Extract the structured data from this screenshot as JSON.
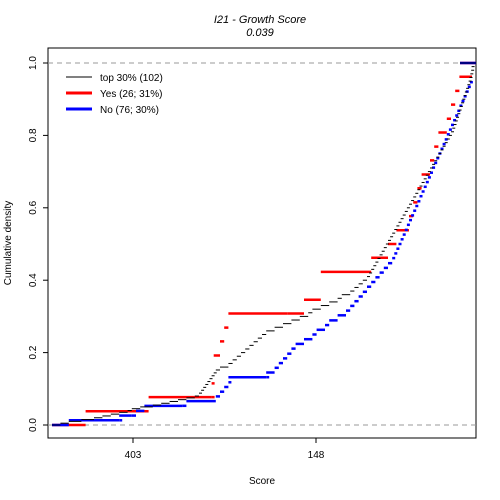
{
  "chart_data": {
    "type": "line",
    "chart_kind": "step-ecdf",
    "title": "I21 - Growth Score",
    "subtitle": "0.039",
    "xlabel": "Score",
    "ylabel": "Cumulative density",
    "xticks": [
      "403",
      "148"
    ],
    "yticks": [
      "0.0",
      "0.2",
      "0.4",
      "0.6",
      "0.8",
      "1.0"
    ],
    "ylim": [
      0,
      1
    ],
    "reference_lines": [
      0,
      1
    ],
    "grid": false,
    "legend_position": "top-left",
    "series": [
      {
        "name": "top 30% (102)",
        "color": "#000000",
        "points": [
          [
            0.0,
            0.0
          ],
          [
            0.02,
            0.005
          ],
          [
            0.04,
            0.01
          ],
          [
            0.07,
            0.015
          ],
          [
            0.1,
            0.02
          ],
          [
            0.12,
            0.025
          ],
          [
            0.14,
            0.03
          ],
          [
            0.16,
            0.035
          ],
          [
            0.18,
            0.04
          ],
          [
            0.19,
            0.045
          ],
          [
            0.21,
            0.05
          ],
          [
            0.24,
            0.055
          ],
          [
            0.26,
            0.06
          ],
          [
            0.28,
            0.065
          ],
          [
            0.3,
            0.07
          ],
          [
            0.32,
            0.075
          ],
          [
            0.34,
            0.08
          ],
          [
            0.35,
            0.088
          ],
          [
            0.355,
            0.096
          ],
          [
            0.36,
            0.104
          ],
          [
            0.365,
            0.112
          ],
          [
            0.37,
            0.12
          ],
          [
            0.375,
            0.128
          ],
          [
            0.38,
            0.136
          ],
          [
            0.385,
            0.144
          ],
          [
            0.39,
            0.152
          ],
          [
            0.4,
            0.16
          ],
          [
            0.42,
            0.17
          ],
          [
            0.43,
            0.18
          ],
          [
            0.44,
            0.19
          ],
          [
            0.45,
            0.2
          ],
          [
            0.46,
            0.21
          ],
          [
            0.47,
            0.22
          ],
          [
            0.48,
            0.23
          ],
          [
            0.49,
            0.24
          ],
          [
            0.5,
            0.25
          ],
          [
            0.51,
            0.26
          ],
          [
            0.53,
            0.27
          ],
          [
            0.55,
            0.28
          ],
          [
            0.57,
            0.29
          ],
          [
            0.59,
            0.3
          ],
          [
            0.61,
            0.31
          ],
          [
            0.62,
            0.32
          ],
          [
            0.64,
            0.33
          ],
          [
            0.66,
            0.34
          ],
          [
            0.68,
            0.35
          ],
          [
            0.69,
            0.36
          ],
          [
            0.71,
            0.37
          ],
          [
            0.72,
            0.38
          ],
          [
            0.73,
            0.39
          ],
          [
            0.74,
            0.4
          ],
          [
            0.75,
            0.41
          ],
          [
            0.755,
            0.42
          ],
          [
            0.76,
            0.43
          ],
          [
            0.765,
            0.44
          ],
          [
            0.77,
            0.45
          ],
          [
            0.775,
            0.46
          ],
          [
            0.78,
            0.47
          ],
          [
            0.785,
            0.48
          ],
          [
            0.79,
            0.49
          ],
          [
            0.795,
            0.5
          ],
          [
            0.8,
            0.51
          ],
          [
            0.805,
            0.52
          ],
          [
            0.81,
            0.53
          ],
          [
            0.815,
            0.54
          ],
          [
            0.82,
            0.55
          ],
          [
            0.825,
            0.56
          ],
          [
            0.83,
            0.57
          ],
          [
            0.835,
            0.58
          ],
          [
            0.84,
            0.59
          ],
          [
            0.845,
            0.6
          ],
          [
            0.85,
            0.61
          ],
          [
            0.855,
            0.62
          ],
          [
            0.86,
            0.63
          ],
          [
            0.865,
            0.64
          ],
          [
            0.87,
            0.65
          ],
          [
            0.875,
            0.66
          ],
          [
            0.88,
            0.67
          ],
          [
            0.885,
            0.68
          ],
          [
            0.89,
            0.69
          ],
          [
            0.895,
            0.7
          ],
          [
            0.9,
            0.71
          ],
          [
            0.905,
            0.72
          ],
          [
            0.91,
            0.73
          ],
          [
            0.915,
            0.74
          ],
          [
            0.92,
            0.75
          ],
          [
            0.925,
            0.76
          ],
          [
            0.93,
            0.77
          ],
          [
            0.935,
            0.78
          ],
          [
            0.94,
            0.79
          ],
          [
            0.945,
            0.8
          ],
          [
            0.95,
            0.81
          ],
          [
            0.953,
            0.82
          ],
          [
            0.956,
            0.83
          ],
          [
            0.959,
            0.84
          ],
          [
            0.962,
            0.85
          ],
          [
            0.965,
            0.86
          ],
          [
            0.968,
            0.87
          ],
          [
            0.971,
            0.88
          ],
          [
            0.974,
            0.89
          ],
          [
            0.977,
            0.9
          ],
          [
            0.98,
            0.91
          ],
          [
            0.983,
            0.92
          ],
          [
            0.986,
            0.93
          ],
          [
            0.989,
            0.94
          ],
          [
            0.992,
            0.95
          ],
          [
            0.994,
            0.96
          ],
          [
            0.996,
            0.97
          ],
          [
            0.998,
            0.98
          ],
          [
            0.999,
            0.99
          ],
          [
            1.0,
            1.0
          ]
        ]
      },
      {
        "name": "Yes (26; 31%)",
        "color": "#ff0000",
        "points": [
          [
            0.0,
            0.0
          ],
          [
            0.08,
            0.038
          ],
          [
            0.22,
            0.038
          ],
          [
            0.23,
            0.077
          ],
          [
            0.38,
            0.077
          ],
          [
            0.38,
            0.115
          ],
          [
            0.385,
            0.192
          ],
          [
            0.4,
            0.231
          ],
          [
            0.41,
            0.269
          ],
          [
            0.42,
            0.308
          ],
          [
            0.56,
            0.308
          ],
          [
            0.6,
            0.346
          ],
          [
            0.64,
            0.423
          ],
          [
            0.75,
            0.423
          ],
          [
            0.76,
            0.462
          ],
          [
            0.8,
            0.5
          ],
          [
            0.82,
            0.538
          ],
          [
            0.85,
            0.577
          ],
          [
            0.86,
            0.615
          ],
          [
            0.87,
            0.654
          ],
          [
            0.88,
            0.692
          ],
          [
            0.9,
            0.731
          ],
          [
            0.91,
            0.769
          ],
          [
            0.92,
            0.808
          ],
          [
            0.94,
            0.846
          ],
          [
            0.95,
            0.885
          ],
          [
            0.96,
            0.923
          ],
          [
            0.97,
            0.962
          ],
          [
            1.0,
            1.0
          ]
        ]
      },
      {
        "name": "No (76; 30%)",
        "color": "#0000ff",
        "points": [
          [
            0.0,
            0.0
          ],
          [
            0.04,
            0.013
          ],
          [
            0.16,
            0.013
          ],
          [
            0.16,
            0.026
          ],
          [
            0.19,
            0.026
          ],
          [
            0.2,
            0.039
          ],
          [
            0.22,
            0.053
          ],
          [
            0.31,
            0.053
          ],
          [
            0.32,
            0.066
          ],
          [
            0.39,
            0.079
          ],
          [
            0.4,
            0.092
          ],
          [
            0.41,
            0.105
          ],
          [
            0.42,
            0.118
          ],
          [
            0.42,
            0.132
          ],
          [
            0.51,
            0.132
          ],
          [
            0.51,
            0.145
          ],
          [
            0.53,
            0.158
          ],
          [
            0.54,
            0.171
          ],
          [
            0.55,
            0.184
          ],
          [
            0.56,
            0.197
          ],
          [
            0.57,
            0.211
          ],
          [
            0.58,
            0.224
          ],
          [
            0.6,
            0.237
          ],
          [
            0.62,
            0.25
          ],
          [
            0.63,
            0.263
          ],
          [
            0.65,
            0.276
          ],
          [
            0.66,
            0.289
          ],
          [
            0.68,
            0.303
          ],
          [
            0.7,
            0.316
          ],
          [
            0.71,
            0.329
          ],
          [
            0.72,
            0.342
          ],
          [
            0.73,
            0.355
          ],
          [
            0.74,
            0.368
          ],
          [
            0.75,
            0.382
          ],
          [
            0.76,
            0.395
          ],
          [
            0.77,
            0.408
          ],
          [
            0.78,
            0.421
          ],
          [
            0.79,
            0.434
          ],
          [
            0.8,
            0.447
          ],
          [
            0.81,
            0.461
          ],
          [
            0.815,
            0.474
          ],
          [
            0.82,
            0.487
          ],
          [
            0.825,
            0.5
          ],
          [
            0.83,
            0.513
          ],
          [
            0.835,
            0.526
          ],
          [
            0.84,
            0.539
          ],
          [
            0.845,
            0.553
          ],
          [
            0.85,
            0.566
          ],
          [
            0.855,
            0.579
          ],
          [
            0.86,
            0.592
          ],
          [
            0.865,
            0.605
          ],
          [
            0.87,
            0.618
          ],
          [
            0.875,
            0.632
          ],
          [
            0.88,
            0.645
          ],
          [
            0.885,
            0.658
          ],
          [
            0.89,
            0.671
          ],
          [
            0.895,
            0.684
          ],
          [
            0.9,
            0.697
          ],
          [
            0.905,
            0.711
          ],
          [
            0.91,
            0.724
          ],
          [
            0.915,
            0.737
          ],
          [
            0.92,
            0.75
          ],
          [
            0.925,
            0.763
          ],
          [
            0.93,
            0.776
          ],
          [
            0.935,
            0.789
          ],
          [
            0.94,
            0.803
          ],
          [
            0.945,
            0.816
          ],
          [
            0.95,
            0.829
          ],
          [
            0.955,
            0.842
          ],
          [
            0.96,
            0.855
          ],
          [
            0.965,
            0.868
          ],
          [
            0.97,
            0.882
          ],
          [
            0.975,
            0.895
          ],
          [
            0.98,
            0.908
          ],
          [
            0.985,
            0.921
          ],
          [
            0.99,
            0.934
          ],
          [
            0.995,
            0.947
          ],
          [
            1.0,
            1.0
          ]
        ]
      }
    ]
  }
}
